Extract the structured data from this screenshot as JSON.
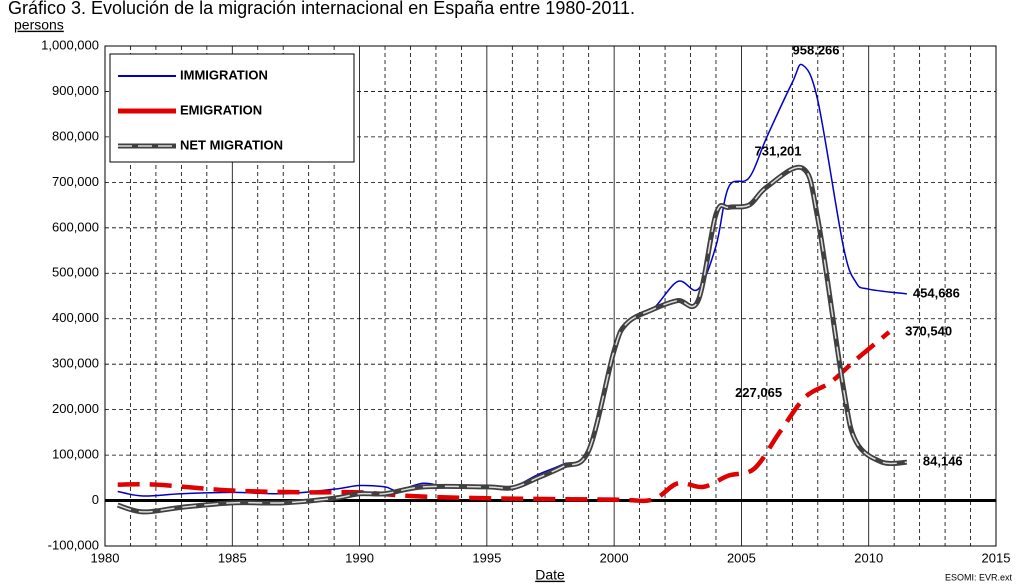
{
  "chart_data": {
    "type": "line",
    "title": "Gráfico 3. Evolución de la migración internacional en España entre 1980-2011.",
    "y_label": "persons",
    "x_label": "Date",
    "source": "ESOMI: EVR.ext",
    "xlim": [
      1980,
      2015
    ],
    "xticks": [
      1980,
      1985,
      1990,
      1995,
      2000,
      2005,
      2010,
      2015
    ],
    "xminorticks": [
      1981,
      1982,
      1983,
      1984,
      1986,
      1987,
      1988,
      1989,
      1991,
      1992,
      1993,
      1994,
      1996,
      1997,
      1998,
      1999,
      2001,
      2002,
      2003,
      2004,
      2006,
      2007,
      2008,
      2009,
      2011,
      2012,
      2013,
      2014
    ],
    "ylim": [
      -100000,
      1000000
    ],
    "yticks": [
      {
        "value": -100000,
        "label": "-100,000"
      },
      0,
      {
        "value": 100000,
        "label": "100,000"
      },
      {
        "value": 200000,
        "label": "200,000"
      },
      {
        "value": 300000,
        "label": "300,000"
      },
      {
        "value": 400000,
        "label": "400,000"
      },
      {
        "value": 500000,
        "label": "500,000"
      },
      {
        "value": 600000,
        "label": "600,000"
      },
      {
        "value": 700000,
        "label": "700,000"
      },
      {
        "value": 800000,
        "label": "800,000"
      },
      {
        "value": 900000,
        "label": "900,000"
      },
      {
        "value": 1000000,
        "label": "1,000,000"
      }
    ],
    "grid": true,
    "legend": "top-left",
    "series": [
      {
        "name": "IMMIGRATION",
        "color": "#0000cc",
        "style": "solid",
        "x": [
          1980.5,
          1981.5,
          1983,
          1985,
          1987,
          1989,
          1990,
          1991,
          1991.5,
          1992.5,
          1993.5,
          1995,
          1996,
          1997,
          1998,
          1999,
          2000,
          2000.5,
          2001.5,
          2002.5,
          2003.3,
          2004,
          2004.5,
          2005.3,
          2006,
          2007,
          2007.4,
          2008,
          2009,
          2009.5,
          2010,
          2011.5
        ],
        "values": [
          20000,
          10000,
          15000,
          18000,
          15000,
          25000,
          33000,
          30000,
          22000,
          38000,
          30000,
          33000,
          30000,
          57000,
          80000,
          110000,
          330000,
          390000,
          420000,
          482000,
          465000,
          560000,
          690000,
          710000,
          800000,
          920000,
          958266,
          880000,
          560000,
          480000,
          465000,
          454686
        ],
        "value_labels": [
          null,
          null,
          null,
          null,
          null,
          null,
          null,
          null,
          null,
          null,
          null,
          null,
          null,
          null,
          null,
          null,
          null,
          null,
          null,
          null,
          null,
          null,
          null,
          null,
          null,
          null,
          "958.266",
          null,
          null,
          null,
          null,
          "454,686"
        ]
      },
      {
        "name": "EMIGRATION",
        "color": "#e00000",
        "style": "dashed",
        "x": [
          1980.5,
          1982,
          1985,
          1988,
          1990,
          1992,
          1995,
          2000,
          2001.5,
          2002.5,
          2003.5,
          2004.5,
          2005.5,
          2006.5,
          2007.5,
          2008.5,
          2009.5,
          2010.8
        ],
        "values": [
          35000,
          35000,
          22000,
          18000,
          18000,
          10000,
          5000,
          2000,
          2000,
          38000,
          30000,
          55000,
          70000,
          150000,
          227065,
          260000,
          310000,
          370540
        ],
        "value_labels": [
          null,
          null,
          null,
          null,
          null,
          null,
          null,
          null,
          null,
          null,
          null,
          null,
          null,
          null,
          "227,065",
          null,
          null,
          "370,540"
        ]
      },
      {
        "name": "NET MIGRATION",
        "color": "#404040",
        "style": "double",
        "x": [
          1980.5,
          1981.5,
          1983,
          1985,
          1987,
          1989,
          1990,
          1991,
          1992.5,
          1995,
          1996,
          1997,
          1998,
          1999,
          2000,
          2000.5,
          2001.5,
          2002.5,
          2003.3,
          2004,
          2004.5,
          2005.3,
          2006,
          2007.4,
          2008,
          2009,
          2009.5,
          2010.5,
          2011.5
        ],
        "values": [
          -10000,
          -25000,
          -15000,
          -5000,
          -5000,
          5000,
          15000,
          15000,
          30000,
          30000,
          28000,
          50000,
          75000,
          110000,
          330000,
          390000,
          420000,
          440000,
          440000,
          630000,
          645000,
          650000,
          690000,
          731201,
          620000,
          250000,
          130000,
          85000,
          84146
        ],
        "value_labels": [
          null,
          null,
          null,
          null,
          null,
          null,
          null,
          null,
          null,
          null,
          null,
          null,
          null,
          null,
          null,
          null,
          null,
          null,
          null,
          null,
          null,
          null,
          null,
          "731,201",
          null,
          null,
          null,
          null,
          "84,146"
        ]
      }
    ]
  }
}
